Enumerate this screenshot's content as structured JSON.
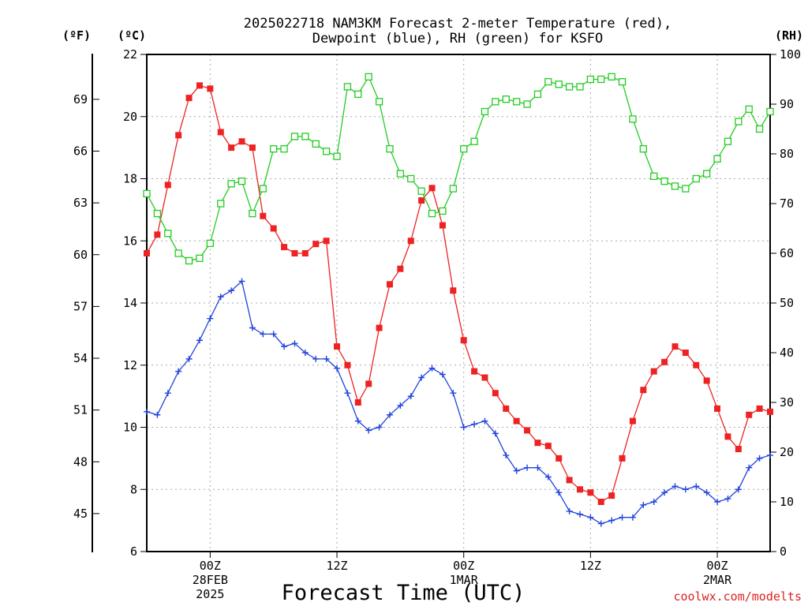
{
  "chart_data": {
    "type": "line",
    "title_line1": "2025022718 NAM3KM Forecast 2-meter Temperature (red),",
    "title_line2": "Dewpoint (blue), RH (green) for KSFO",
    "xlabel": "Forecast Time (UTC)",
    "credit": "coolwx.com/modelts",
    "units": {
      "fahrenheit": "(ºF)",
      "celsius": "(ºC)",
      "rh": "(RH)"
    },
    "x_range_hours": [
      -6,
      53
    ],
    "celsius_range": [
      6,
      22
    ],
    "rh_range": [
      0,
      100
    ],
    "grid": true,
    "celsius_ticks": [
      6,
      8,
      10,
      12,
      14,
      16,
      18,
      20,
      22
    ],
    "fahrenheit_ticks": [
      45,
      48,
      51,
      54,
      57,
      60,
      63,
      66,
      69
    ],
    "rh_ticks": [
      0,
      10,
      20,
      30,
      40,
      50,
      60,
      70,
      80,
      90,
      100
    ],
    "x_ticks": [
      {
        "hour": 0,
        "line1": "00Z",
        "line2": "28FEB",
        "line3": "2025"
      },
      {
        "hour": 12,
        "line1": "12Z",
        "line2": "",
        "line3": ""
      },
      {
        "hour": 24,
        "line1": "00Z",
        "line2": "1MAR",
        "line3": ""
      },
      {
        "hour": 36,
        "line1": "12Z",
        "line2": "",
        "line3": ""
      },
      {
        "hour": 48,
        "line1": "00Z",
        "line2": "2MAR",
        "line3": ""
      }
    ],
    "series": [
      {
        "name": "Temperature",
        "axis": "celsius",
        "color": "#ee2222",
        "marker": "filled-square",
        "x": [
          -6,
          -5,
          -4,
          -3,
          -2,
          -1,
          0,
          1,
          2,
          3,
          4,
          5,
          6,
          7,
          8,
          9,
          10,
          11,
          12,
          13,
          14,
          15,
          16,
          17,
          18,
          19,
          20,
          21,
          22,
          23,
          24,
          25,
          26,
          27,
          28,
          29,
          30,
          31,
          32,
          33,
          34,
          35,
          36,
          37,
          38,
          39,
          40,
          41,
          42,
          43,
          44,
          45,
          46,
          47,
          48,
          49,
          50,
          51,
          52,
          53
        ],
        "y": [
          15.6,
          16.2,
          17.8,
          19.4,
          20.6,
          21.0,
          20.9,
          19.5,
          19.0,
          19.2,
          19.0,
          16.8,
          16.4,
          15.8,
          15.6,
          15.6,
          15.9,
          16.0,
          12.6,
          12.0,
          10.8,
          11.4,
          13.2,
          14.6,
          15.1,
          16.0,
          17.3,
          17.7,
          16.5,
          14.4,
          12.8,
          11.8,
          11.6,
          11.1,
          10.6,
          10.2,
          9.9,
          9.5,
          9.4,
          9.0,
          8.3,
          8.0,
          7.9,
          7.6,
          7.8,
          9.0,
          10.2,
          11.2,
          11.8,
          12.1,
          12.6,
          12.4,
          12.0,
          11.5,
          10.6,
          9.7,
          9.3,
          10.4,
          10.6,
          10.5
        ]
      },
      {
        "name": "Dewpoint",
        "axis": "celsius",
        "color": "#2244dd",
        "marker": "plus",
        "x": [
          -6,
          -5,
          -4,
          -3,
          -2,
          -1,
          0,
          1,
          2,
          3,
          4,
          5,
          6,
          7,
          8,
          9,
          10,
          11,
          12,
          13,
          14,
          15,
          16,
          17,
          18,
          19,
          20,
          21,
          22,
          23,
          24,
          25,
          26,
          27,
          28,
          29,
          30,
          31,
          32,
          33,
          34,
          35,
          36,
          37,
          38,
          39,
          40,
          41,
          42,
          43,
          44,
          45,
          46,
          47,
          48,
          49,
          50,
          51,
          52,
          53
        ],
        "y": [
          10.5,
          10.4,
          11.1,
          11.8,
          12.2,
          12.8,
          13.5,
          14.2,
          14.4,
          14.7,
          13.2,
          13.0,
          13.0,
          12.6,
          12.7,
          12.4,
          12.2,
          12.2,
          11.9,
          11.1,
          10.2,
          9.9,
          10.0,
          10.4,
          10.7,
          11.0,
          11.6,
          11.9,
          11.7,
          11.1,
          10.0,
          10.1,
          10.2,
          9.8,
          9.1,
          8.6,
          8.7,
          8.7,
          8.4,
          7.9,
          7.3,
          7.2,
          7.1,
          6.9,
          7.0,
          7.1,
          7.1,
          7.5,
          7.6,
          7.9,
          8.1,
          8.0,
          8.1,
          7.9,
          7.6,
          7.7,
          8.0,
          8.7,
          9.0,
          9.1
        ]
      },
      {
        "name": "RH",
        "axis": "rh",
        "color": "#22cc22",
        "marker": "open-square",
        "x": [
          -6,
          -5,
          -4,
          -3,
          -2,
          -1,
          0,
          1,
          2,
          3,
          4,
          5,
          6,
          7,
          8,
          9,
          10,
          11,
          12,
          13,
          14,
          15,
          16,
          17,
          18,
          19,
          20,
          21,
          22,
          23,
          24,
          25,
          26,
          27,
          28,
          29,
          30,
          31,
          32,
          33,
          34,
          35,
          36,
          37,
          38,
          39,
          40,
          41,
          42,
          43,
          44,
          45,
          46,
          47,
          48,
          49,
          50,
          51,
          52,
          53
        ],
        "y": [
          72,
          68,
          64,
          60,
          58.5,
          59,
          62,
          70,
          74,
          74.5,
          68,
          73,
          81,
          81,
          83.5,
          83.5,
          82,
          80.5,
          79.5,
          93.5,
          92,
          95.5,
          90.5,
          81,
          76,
          75,
          72.5,
          68,
          68.5,
          73,
          81,
          82.5,
          88.5,
          90.5,
          91,
          90.5,
          90,
          92,
          94.5,
          94,
          93.5,
          93.5,
          95,
          95,
          95.5,
          94.5,
          87,
          81,
          75.5,
          74.5,
          73.5,
          73,
          75,
          76,
          79,
          82.5,
          86.5,
          89,
          85,
          88.5
        ]
      }
    ]
  }
}
